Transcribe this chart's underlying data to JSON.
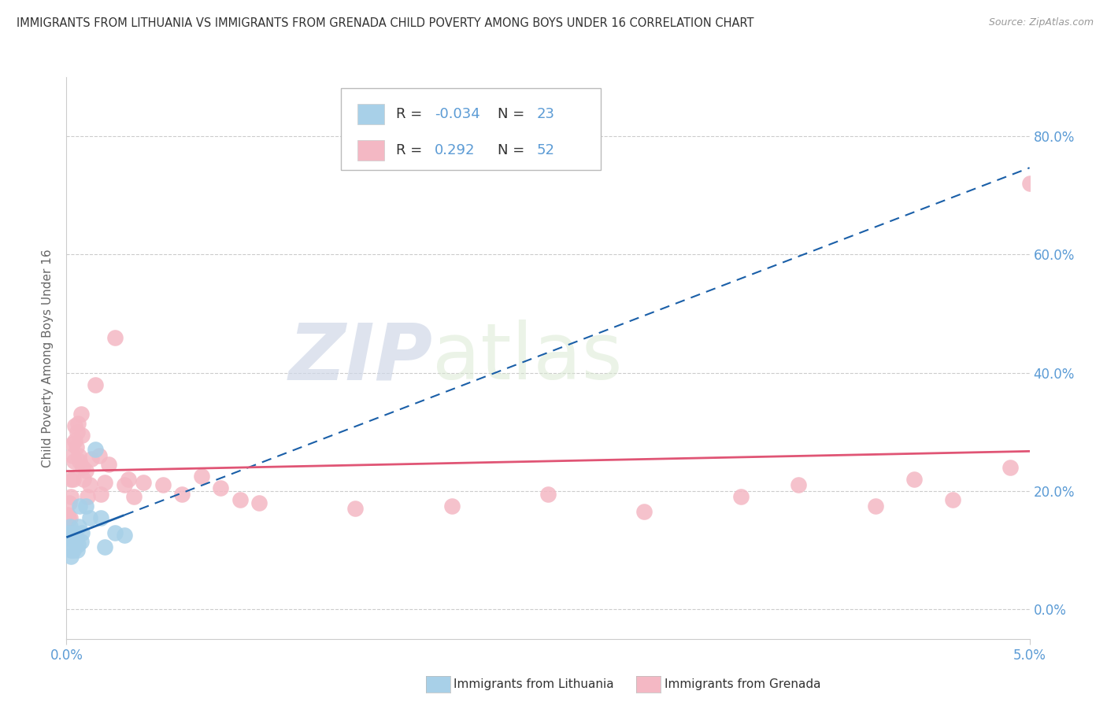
{
  "title": "IMMIGRANTS FROM LITHUANIA VS IMMIGRANTS FROM GRENADA CHILD POVERTY AMONG BOYS UNDER 16 CORRELATION CHART",
  "source": "Source: ZipAtlas.com",
  "ylabel": "Child Poverty Among Boys Under 16",
  "xlim": [
    0.0,
    0.05
  ],
  "ylim": [
    -0.05,
    0.9
  ],
  "color_lithuania": "#a8d0e8",
  "color_grenada": "#f4b8c4",
  "color_line_lithuania": "#1a5fa8",
  "color_line_grenada": "#e05575",
  "color_axis_text": "#5b9bd5",
  "color_title": "#333333",
  "watermark_zip": "ZIP",
  "watermark_atlas": "atlas",
  "background_color": "#ffffff",
  "grid_color": "#cccccc",
  "ytick_vals": [
    0.0,
    0.2,
    0.4,
    0.6,
    0.8
  ],
  "ytick_labels": [
    "0.0%",
    "20.0%",
    "40.0%",
    "60.0%",
    "80.0%"
  ],
  "r_lith": "-0.034",
  "n_lith": "23",
  "r_gren": "0.292",
  "n_gren": "52",
  "lithuania_x": [
    0.00015,
    0.00018,
    0.0002,
    0.00022,
    0.00025,
    0.0003,
    0.00035,
    0.0004,
    0.00045,
    0.0005,
    0.00055,
    0.0006,
    0.00065,
    0.0007,
    0.00075,
    0.0008,
    0.001,
    0.0012,
    0.0015,
    0.0018,
    0.002,
    0.0025,
    0.003
  ],
  "lithuania_y": [
    0.13,
    0.14,
    0.12,
    0.1,
    0.09,
    0.12,
    0.1,
    0.13,
    0.115,
    0.12,
    0.1,
    0.11,
    0.14,
    0.175,
    0.115,
    0.13,
    0.175,
    0.155,
    0.27,
    0.155,
    0.105,
    0.13,
    0.125
  ],
  "grenada_x": [
    8e-05,
    0.00012,
    0.00015,
    0.0002,
    0.00022,
    0.00025,
    0.0003,
    0.00032,
    0.00035,
    0.0004,
    0.00042,
    0.00045,
    0.0005,
    0.00055,
    0.0006,
    0.00065,
    0.0007,
    0.00075,
    0.0008,
    0.00085,
    0.0009,
    0.001,
    0.0011,
    0.0012,
    0.0013,
    0.0015,
    0.0017,
    0.0018,
    0.002,
    0.0022,
    0.0025,
    0.003,
    0.0032,
    0.0035,
    0.004,
    0.005,
    0.006,
    0.007,
    0.008,
    0.009,
    0.01,
    0.015,
    0.02,
    0.025,
    0.03,
    0.035,
    0.038,
    0.042,
    0.044,
    0.046,
    0.049,
    0.05
  ],
  "grenada_y": [
    0.16,
    0.155,
    0.18,
    0.155,
    0.19,
    0.22,
    0.26,
    0.28,
    0.22,
    0.25,
    0.31,
    0.285,
    0.275,
    0.3,
    0.315,
    0.26,
    0.25,
    0.33,
    0.295,
    0.24,
    0.22,
    0.235,
    0.19,
    0.21,
    0.255,
    0.38,
    0.26,
    0.195,
    0.215,
    0.245,
    0.46,
    0.21,
    0.22,
    0.19,
    0.215,
    0.21,
    0.195,
    0.225,
    0.205,
    0.185,
    0.18,
    0.17,
    0.175,
    0.195,
    0.165,
    0.19,
    0.21,
    0.175,
    0.22,
    0.185,
    0.24,
    0.72
  ]
}
